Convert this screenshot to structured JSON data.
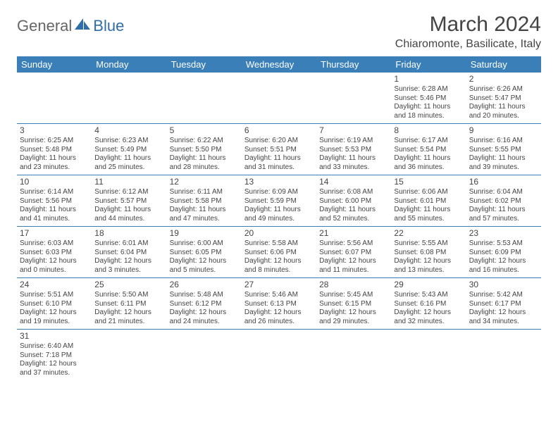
{
  "brand": {
    "general": "General",
    "blue": "Blue"
  },
  "title": "March 2024",
  "location": "Chiaromonte, Basilicate, Italy",
  "colors": {
    "header_bg": "#3a7fb8",
    "header_text": "#ffffff",
    "border": "#3a7fb8",
    "text": "#444444",
    "logo_blue": "#2f6fa8"
  },
  "day_headers": [
    "Sunday",
    "Monday",
    "Tuesday",
    "Wednesday",
    "Thursday",
    "Friday",
    "Saturday"
  ],
  "weeks": [
    [
      null,
      null,
      null,
      null,
      null,
      {
        "n": "1",
        "sr": "6:28 AM",
        "ss": "5:46 PM",
        "dl": "11 hours and 18 minutes."
      },
      {
        "n": "2",
        "sr": "6:26 AM",
        "ss": "5:47 PM",
        "dl": "11 hours and 20 minutes."
      }
    ],
    [
      {
        "n": "3",
        "sr": "6:25 AM",
        "ss": "5:48 PM",
        "dl": "11 hours and 23 minutes."
      },
      {
        "n": "4",
        "sr": "6:23 AM",
        "ss": "5:49 PM",
        "dl": "11 hours and 25 minutes."
      },
      {
        "n": "5",
        "sr": "6:22 AM",
        "ss": "5:50 PM",
        "dl": "11 hours and 28 minutes."
      },
      {
        "n": "6",
        "sr": "6:20 AM",
        "ss": "5:51 PM",
        "dl": "11 hours and 31 minutes."
      },
      {
        "n": "7",
        "sr": "6:19 AM",
        "ss": "5:53 PM",
        "dl": "11 hours and 33 minutes."
      },
      {
        "n": "8",
        "sr": "6:17 AM",
        "ss": "5:54 PM",
        "dl": "11 hours and 36 minutes."
      },
      {
        "n": "9",
        "sr": "6:16 AM",
        "ss": "5:55 PM",
        "dl": "11 hours and 39 minutes."
      }
    ],
    [
      {
        "n": "10",
        "sr": "6:14 AM",
        "ss": "5:56 PM",
        "dl": "11 hours and 41 minutes."
      },
      {
        "n": "11",
        "sr": "6:12 AM",
        "ss": "5:57 PM",
        "dl": "11 hours and 44 minutes."
      },
      {
        "n": "12",
        "sr": "6:11 AM",
        "ss": "5:58 PM",
        "dl": "11 hours and 47 minutes."
      },
      {
        "n": "13",
        "sr": "6:09 AM",
        "ss": "5:59 PM",
        "dl": "11 hours and 49 minutes."
      },
      {
        "n": "14",
        "sr": "6:08 AM",
        "ss": "6:00 PM",
        "dl": "11 hours and 52 minutes."
      },
      {
        "n": "15",
        "sr": "6:06 AM",
        "ss": "6:01 PM",
        "dl": "11 hours and 55 minutes."
      },
      {
        "n": "16",
        "sr": "6:04 AM",
        "ss": "6:02 PM",
        "dl": "11 hours and 57 minutes."
      }
    ],
    [
      {
        "n": "17",
        "sr": "6:03 AM",
        "ss": "6:03 PM",
        "dl": "12 hours and 0 minutes."
      },
      {
        "n": "18",
        "sr": "6:01 AM",
        "ss": "6:04 PM",
        "dl": "12 hours and 3 minutes."
      },
      {
        "n": "19",
        "sr": "6:00 AM",
        "ss": "6:05 PM",
        "dl": "12 hours and 5 minutes."
      },
      {
        "n": "20",
        "sr": "5:58 AM",
        "ss": "6:06 PM",
        "dl": "12 hours and 8 minutes."
      },
      {
        "n": "21",
        "sr": "5:56 AM",
        "ss": "6:07 PM",
        "dl": "12 hours and 11 minutes."
      },
      {
        "n": "22",
        "sr": "5:55 AM",
        "ss": "6:08 PM",
        "dl": "12 hours and 13 minutes."
      },
      {
        "n": "23",
        "sr": "5:53 AM",
        "ss": "6:09 PM",
        "dl": "12 hours and 16 minutes."
      }
    ],
    [
      {
        "n": "24",
        "sr": "5:51 AM",
        "ss": "6:10 PM",
        "dl": "12 hours and 19 minutes."
      },
      {
        "n": "25",
        "sr": "5:50 AM",
        "ss": "6:11 PM",
        "dl": "12 hours and 21 minutes."
      },
      {
        "n": "26",
        "sr": "5:48 AM",
        "ss": "6:12 PM",
        "dl": "12 hours and 24 minutes."
      },
      {
        "n": "27",
        "sr": "5:46 AM",
        "ss": "6:13 PM",
        "dl": "12 hours and 26 minutes."
      },
      {
        "n": "28",
        "sr": "5:45 AM",
        "ss": "6:15 PM",
        "dl": "12 hours and 29 minutes."
      },
      {
        "n": "29",
        "sr": "5:43 AM",
        "ss": "6:16 PM",
        "dl": "12 hours and 32 minutes."
      },
      {
        "n": "30",
        "sr": "5:42 AM",
        "ss": "6:17 PM",
        "dl": "12 hours and 34 minutes."
      }
    ],
    [
      {
        "n": "31",
        "sr": "6:40 AM",
        "ss": "7:18 PM",
        "dl": "12 hours and 37 minutes."
      },
      null,
      null,
      null,
      null,
      null,
      null
    ]
  ],
  "labels": {
    "sunrise": "Sunrise: ",
    "sunset": "Sunset: ",
    "daylight": "Daylight: "
  }
}
